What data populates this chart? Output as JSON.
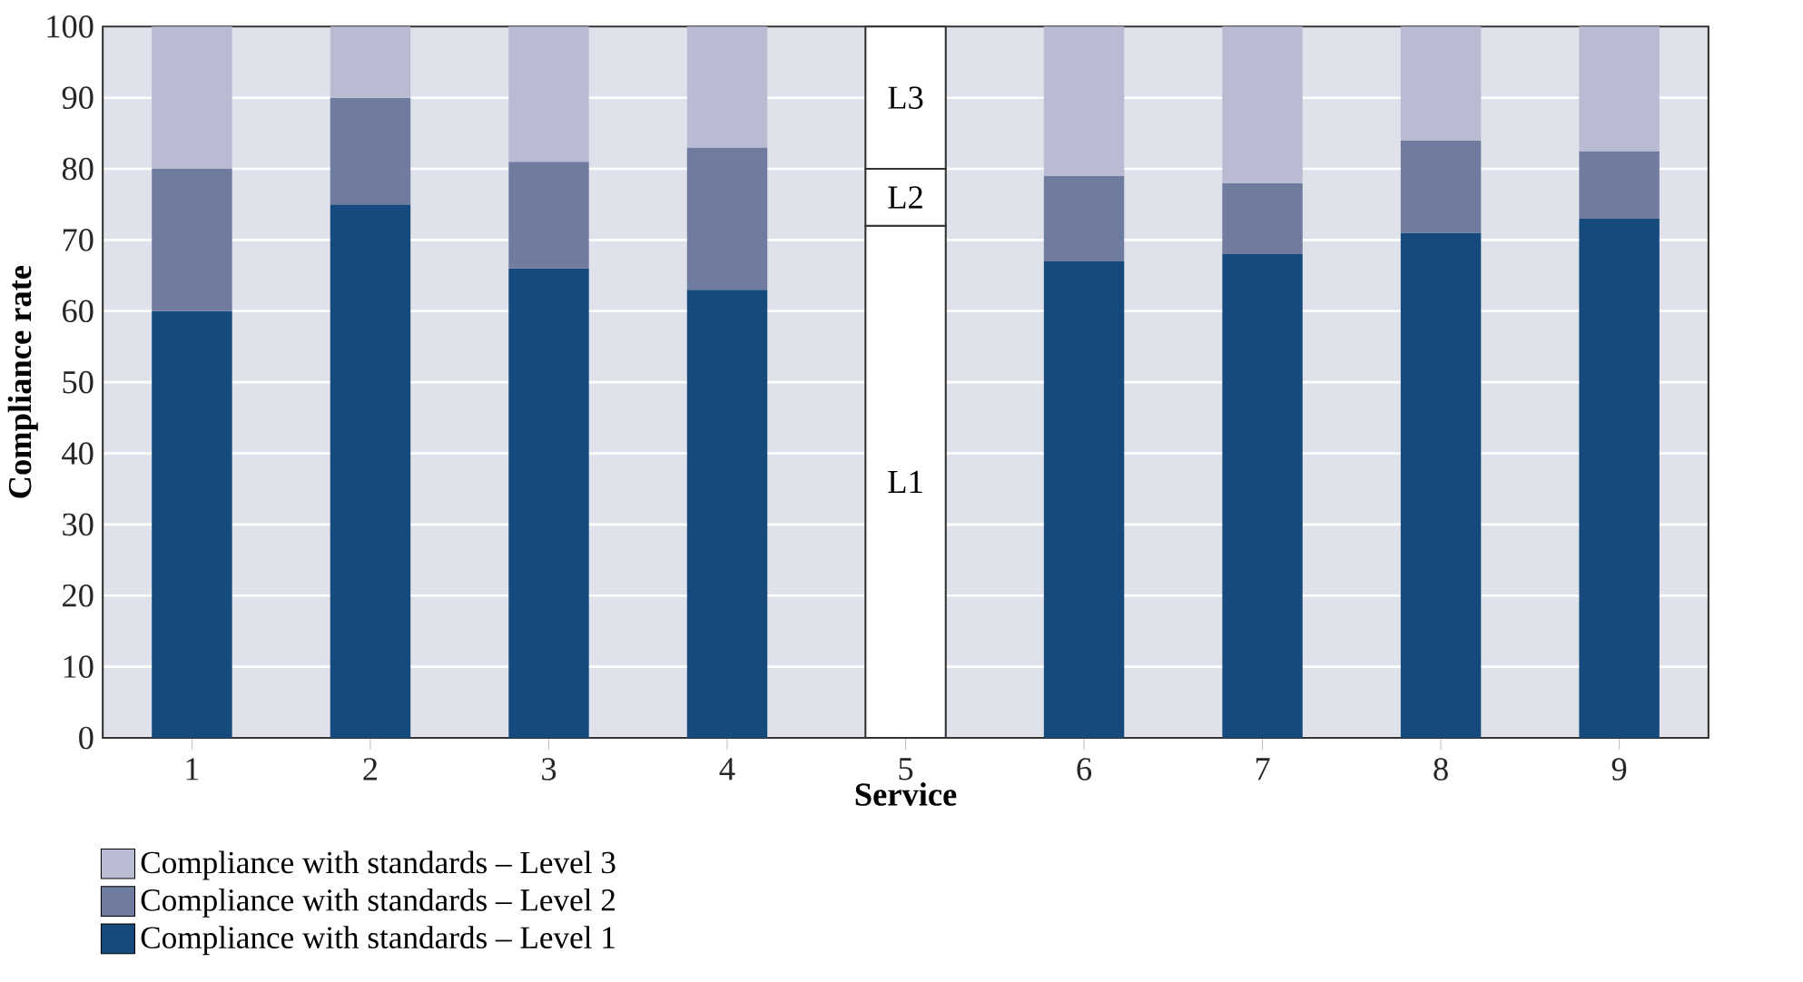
{
  "chart_data": {
    "type": "bar",
    "stacked": true,
    "xlabel": "Service",
    "ylabel": "Compliance rate",
    "categories": [
      "1",
      "2",
      "3",
      "4",
      "5",
      "6",
      "7",
      "8",
      "9"
    ],
    "series": [
      {
        "name": "Compliance with standards – Level 1",
        "color": "#174a7c",
        "colors": [
          "#174a7c",
          "#174a7c",
          "#174a7c",
          "#174a7c",
          "#ffffff",
          "#174a7c",
          "#174a7c",
          "#174a7c",
          "#174a7c"
        ],
        "values": [
          60,
          75,
          66,
          63,
          72,
          67,
          68,
          71,
          73
        ]
      },
      {
        "name": "Compliance with standards – Level 2",
        "color": "#707ba0",
        "colors": [
          "#707ba0",
          "#707ba0",
          "#707ba0",
          "#707ba0",
          "#ffffff",
          "#707ba0",
          "#707ba0",
          "#707ba0",
          "#707ba0"
        ],
        "values": [
          20,
          15,
          15,
          20,
          8,
          12,
          10,
          13,
          9.5
        ]
      },
      {
        "name": "Compliance with standards – Level 3",
        "color": "#b9bbd2",
        "colors": [
          "#b9bbd2",
          "#b9bbd2",
          "#b9bbd2",
          "#b9bbd2",
          "#ffffff",
          "#b9bbd2",
          "#b9bbd2",
          "#b9bbd2",
          "#b9bbd2"
        ],
        "values": [
          20,
          10,
          19,
          17,
          20,
          21,
          22,
          16,
          17.5
        ]
      }
    ],
    "annotations": [
      "L1",
      "L2",
      "L3"
    ],
    "ylim": [
      0,
      100
    ],
    "yticks": [
      0,
      10,
      20,
      30,
      40,
      50,
      60,
      70,
      80,
      90,
      100
    ],
    "grid": "y",
    "legend": "bottom left"
  }
}
